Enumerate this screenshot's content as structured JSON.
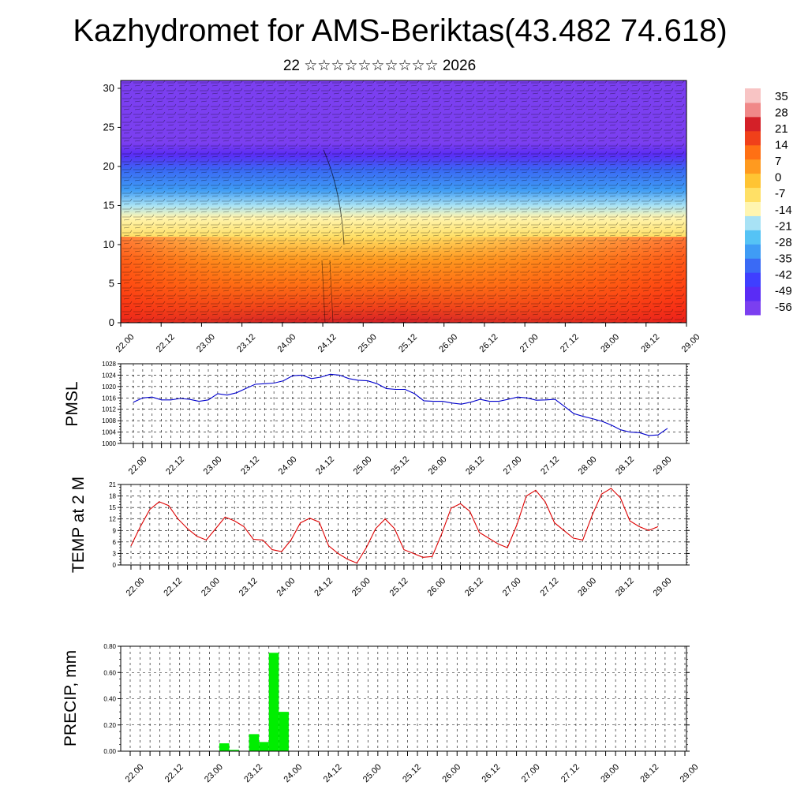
{
  "header": {
    "title": "Kazhydromet for AMS-Beriktas(43.482 74.618)",
    "subtitle": "22 ☆☆☆☆☆☆☆☆☆☆ 2026"
  },
  "chart_data": [
    {
      "type": "heatmap",
      "name": "cross-section",
      "description_note": "",
      "x_tick_labels": [
        "22.00",
        "22.12",
        "23.00",
        "23.12",
        "24.00",
        "24.12",
        "25.00",
        "25.12",
        "26.00",
        "26.12",
        "27.00",
        "27.12",
        "28.00",
        "28.12",
        "29.00"
      ],
      "y_ticks": [
        0,
        5,
        10,
        15,
        20,
        25,
        30
      ],
      "ylim": [
        0,
        31
      ],
      "colorbar_labels": [
        "35",
        "28",
        "21",
        "14",
        "7",
        "0",
        "-7",
        "-14",
        "-21",
        "-28",
        "-35",
        "-42",
        "-49",
        "-56"
      ],
      "colorbar_range": [
        -60,
        38
      ],
      "colors": {
        "scale": [
          "#7b3ff0",
          "#5a2cf5",
          "#3f3fff",
          "#3a6af5",
          "#3f9cf5",
          "#55c3f5",
          "#a8e2f5",
          "#fff5b0",
          "#ffe066",
          "#ffc433",
          "#ff9a1f",
          "#ff7014",
          "#f0401a",
          "#d42028",
          "#f08888",
          "#f8c4c4"
        ]
      },
      "profile": [
        {
          "z": 0,
          "t": 22
        },
        {
          "z": 2,
          "t": 17
        },
        {
          "z": 5,
          "t": 10
        },
        {
          "z": 8,
          "t": 2
        },
        {
          "z": 11,
          "t": -6
        },
        {
          "z": 13.5,
          "t": -13
        },
        {
          "z": 15,
          "t": -20
        },
        {
          "z": 17,
          "t": -30
        },
        {
          "z": 19.5,
          "t": -40
        },
        {
          "z": 21.5,
          "t": -49
        },
        {
          "z": 23,
          "t": -56
        },
        {
          "z": 26,
          "t": -58
        },
        {
          "z": 31,
          "t": -60
        }
      ]
    },
    {
      "type": "line",
      "name": "PMSL",
      "ylabel": "PMSL",
      "ylim": [
        1000,
        1028
      ],
      "y_ticks": [
        1000,
        1004,
        1008,
        1012,
        1016,
        1020,
        1024,
        1028
      ],
      "x_tick_labels": [
        "22.00",
        "22.12",
        "23.00",
        "23.12",
        "24.00",
        "24.12",
        "25.00",
        "25.12",
        "26.00",
        "26.12",
        "27.00",
        "27.12",
        "28.00",
        "28.12",
        "29.00"
      ],
      "step_hours": 3,
      "color": "#0000cc",
      "values": [
        1014.5,
        1016,
        1016.3,
        1015.3,
        1015.3,
        1015.8,
        1015.5,
        1014.8,
        1015.3,
        1017.5,
        1017,
        1017.8,
        1019.3,
        1020.8,
        1021,
        1021.2,
        1022,
        1023.8,
        1024,
        1022.8,
        1023.3,
        1024.3,
        1024,
        1022.8,
        1022.2,
        1022,
        1021,
        1019.3,
        1019,
        1019,
        1017.5,
        1015,
        1014.8,
        1014.8,
        1014.2,
        1013.8,
        1014.5,
        1015.5,
        1014.8,
        1014.8,
        1015.5,
        1016.3,
        1016,
        1015.2,
        1015.3,
        1015.5,
        1013,
        1010.5,
        1009.5,
        1008.7,
        1007.8,
        1006.5,
        1004.8,
        1004,
        1003.8,
        1002.8,
        1003,
        1005.3
      ]
    },
    {
      "type": "line",
      "name": "TEMP at 2 M",
      "ylabel": "TEMP at 2 M",
      "ylim": [
        0,
        21
      ],
      "y_ticks": [
        0,
        3,
        6,
        9,
        12,
        15,
        18,
        21
      ],
      "x_tick_labels": [
        "22.00",
        "22.12",
        "23.00",
        "23.12",
        "24.00",
        "24.12",
        "25.00",
        "25.12",
        "26.00",
        "26.12",
        "27.00",
        "27.12",
        "28.00",
        "28.12",
        "29.00"
      ],
      "step_hours": 3,
      "color": "#dd0000",
      "values": [
        5,
        10,
        14.5,
        16.5,
        15.5,
        12,
        9.5,
        7.5,
        6.5,
        9.5,
        12.5,
        11.5,
        10,
        6.7,
        6.5,
        4,
        3.5,
        6.5,
        11,
        12.2,
        11.2,
        5,
        3,
        1.5,
        0.5,
        4.5,
        9.5,
        12,
        9.5,
        4,
        3,
        2,
        2.2,
        8,
        14.8,
        16,
        14,
        8.5,
        7,
        5.5,
        4.5,
        10.5,
        18,
        19.5,
        16.5,
        11,
        9,
        7,
        6.5,
        13,
        18.5,
        20,
        17.5,
        11.5,
        10,
        9,
        10
      ]
    },
    {
      "type": "bar",
      "name": "PRECIP",
      "ylabel": "PRECIP, mm",
      "ylim": [
        0,
        0.8
      ],
      "y_tick_labels": [
        "0.00",
        "0.20",
        "0.40",
        "0.60",
        "0.80"
      ],
      "y_ticks": [
        0,
        0.2,
        0.4,
        0.6,
        0.8
      ],
      "x_tick_labels": [
        "22.00",
        "22.12",
        "23.00",
        "23.12",
        "24.00",
        "24.12",
        "25.00",
        "25.12",
        "26.00",
        "26.12",
        "27.00",
        "27.12",
        "28.00",
        "28.12",
        "29.00"
      ],
      "step_hours": 3,
      "color": "#00ee00",
      "values": [
        0,
        0,
        0,
        0,
        0,
        0,
        0,
        0,
        0,
        0.06,
        0.01,
        0,
        0.13,
        0.07,
        0.75,
        0.3,
        0,
        0,
        0,
        0,
        0,
        0,
        0,
        0,
        0,
        0,
        0,
        0,
        0,
        0,
        0,
        0,
        0,
        0,
        0,
        0,
        0,
        0,
        0,
        0,
        0,
        0,
        0,
        0,
        0,
        0,
        0,
        0,
        0,
        0,
        0,
        0,
        0,
        0,
        0,
        0
      ]
    }
  ]
}
